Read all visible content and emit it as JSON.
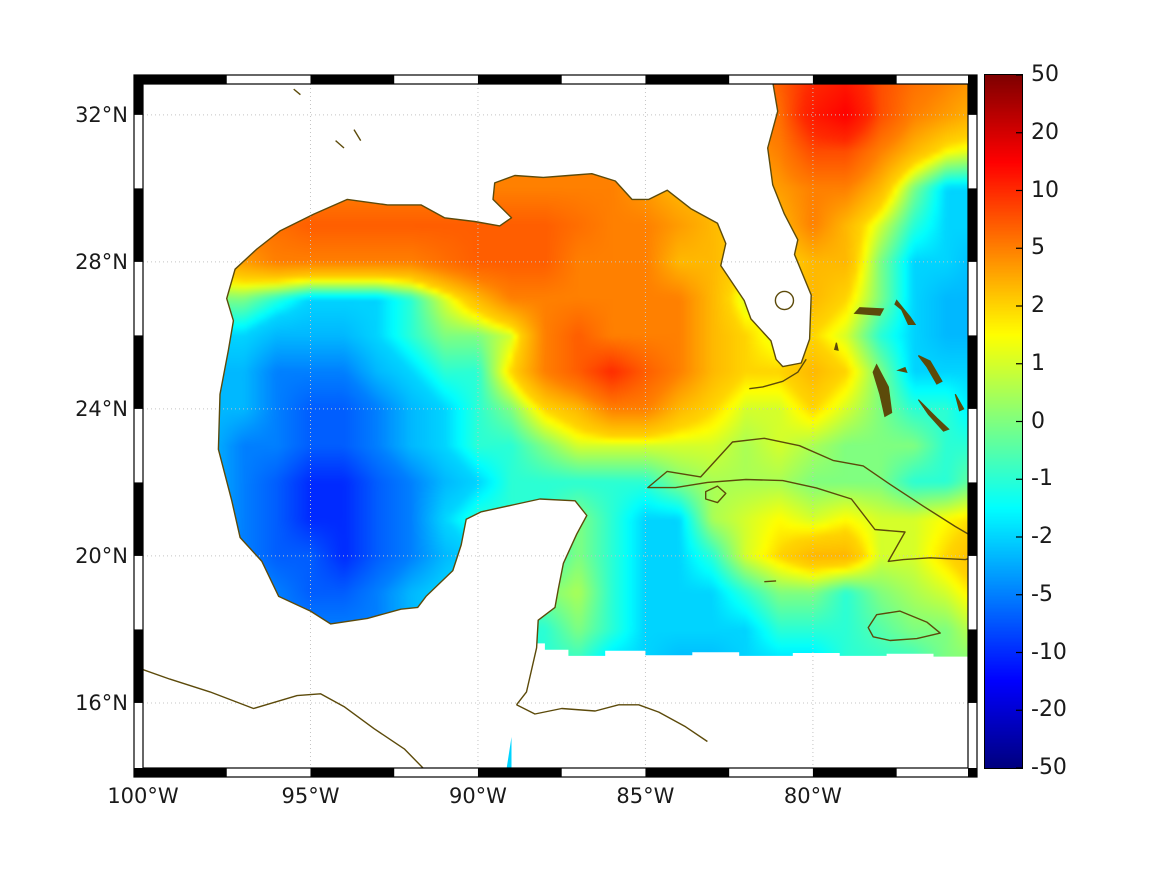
{
  "axes": {
    "x_tick_labels": [
      "100°W",
      "95°W",
      "90°W",
      "85°W",
      "80°W"
    ],
    "y_tick_labels": [
      "16°N",
      "20°N",
      "24°N",
      "28°N",
      "32°N"
    ]
  },
  "chart_data": {
    "type": "heatmap",
    "title": "",
    "xlabel": "",
    "ylabel": "",
    "lon_ticks": [
      -100,
      -95,
      -90,
      -85,
      -80
    ],
    "lat_ticks": [
      16,
      20,
      24,
      28,
      32
    ],
    "lon_range": [
      -100,
      -75.37
    ],
    "lat_range": [
      14.23,
      32.84
    ],
    "grid_on": true,
    "colorbar": {
      "orientation": "vertical",
      "colormap": "jet",
      "tick_labels": [
        "50",
        "20",
        "10",
        "5",
        "2",
        "1",
        "0",
        "-1",
        "-2",
        "-5",
        "-10",
        "-20",
        "-50"
      ],
      "scale_ticks": [
        -50,
        -20,
        -10,
        -5,
        -2,
        -1,
        0,
        1,
        2,
        5,
        10,
        20,
        50
      ]
    },
    "grid": {
      "lons": [
        -100,
        -99,
        -98,
        -97,
        -96,
        -95,
        -94,
        -93,
        -92,
        -91,
        -90,
        -89,
        -88,
        -87,
        -86,
        -85,
        -84,
        -83,
        -82,
        -81,
        -80,
        -79,
        -78,
        -77,
        -76,
        -75
      ],
      "lats": [
        33,
        32,
        31,
        30,
        29,
        28,
        27,
        26,
        25,
        24,
        23,
        22,
        21,
        20,
        19,
        18,
        17,
        16,
        15
      ],
      "values": [
        [
          5,
          5,
          5,
          5,
          5,
          5,
          5,
          5,
          5,
          5,
          5,
          5,
          5,
          5,
          5,
          5,
          5,
          5,
          5,
          7,
          10,
          12,
          8,
          6,
          5,
          4
        ],
        [
          5,
          5,
          5,
          5,
          5,
          5,
          5,
          5,
          5,
          5,
          5,
          5,
          5,
          5,
          5,
          5,
          5,
          5,
          4,
          6,
          12,
          15,
          8,
          5,
          4,
          3
        ],
        [
          4,
          4,
          4,
          4,
          5,
          5,
          5,
          5,
          5,
          5,
          5,
          5,
          5,
          5,
          5,
          5,
          4,
          4,
          4,
          5,
          8,
          8,
          5,
          3,
          1.5,
          1
        ],
        [
          3,
          3,
          3,
          4,
          5,
          5,
          5,
          5,
          5,
          5,
          5,
          5,
          5,
          5,
          5,
          4,
          3,
          3,
          3,
          4,
          5,
          5,
          3,
          0,
          -2,
          -2
        ],
        [
          3,
          3,
          4,
          5,
          6,
          7,
          7,
          7,
          7,
          7,
          7,
          7,
          7,
          6,
          5,
          5,
          4,
          3,
          2,
          3,
          5,
          3,
          1,
          -1,
          -2,
          -2
        ],
        [
          2,
          2,
          3,
          4,
          5,
          5,
          5,
          5,
          5,
          6,
          7,
          7,
          7,
          5,
          5,
          5,
          3,
          3,
          2,
          2,
          3,
          3,
          0,
          -2,
          -2,
          -3
        ],
        [
          1,
          1,
          0,
          0,
          -1,
          -2,
          -2,
          -2,
          -1,
          1,
          3,
          5,
          5,
          5,
          5,
          5,
          5,
          3,
          1,
          2,
          3,
          2,
          0,
          -2,
          -3,
          -3
        ],
        [
          0,
          -1,
          -2,
          -2,
          -3,
          -3,
          -3,
          -2,
          -1,
          0,
          0,
          1,
          5,
          7,
          5,
          5,
          5,
          3,
          2,
          1,
          2,
          1,
          -1,
          -2,
          -3,
          -3
        ],
        [
          -1,
          -2,
          -3,
          -3,
          -5,
          -5,
          -5,
          -3,
          -2,
          -1,
          -1,
          2,
          5,
          7,
          10,
          7,
          5,
          3,
          2,
          2,
          3,
          2,
          0,
          -2,
          -2,
          -2
        ],
        [
          -1,
          -2,
          -3,
          -3,
          -5,
          -7,
          -7,
          -5,
          -3,
          -2,
          -1,
          0,
          2,
          3,
          5,
          5,
          3,
          2,
          1,
          1,
          2,
          1,
          0,
          -1,
          -1,
          -2
        ],
        [
          -1,
          -2,
          -3,
          -5,
          -5,
          -7,
          -7,
          -5,
          -3,
          -2,
          -1,
          -1,
          0,
          1,
          1,
          1,
          1,
          1,
          0.5,
          1,
          0.5,
          0,
          0,
          0,
          -1,
          -1
        ],
        [
          -1,
          -2,
          -3,
          -5,
          -7,
          -10,
          -10,
          -7,
          -5,
          -3,
          -2,
          -1,
          -1,
          -1,
          -1,
          -1,
          0,
          0.5,
          0.5,
          0.5,
          0,
          0,
          0,
          -1,
          -1,
          0
        ],
        [
          -1,
          -2,
          -3,
          -5,
          -7,
          -10,
          -10,
          -7,
          -5,
          -2,
          -1,
          -1,
          -1,
          0,
          -1,
          -2,
          -2,
          0.5,
          1,
          1.5,
          1,
          1.5,
          1,
          1,
          1.5,
          2
        ],
        [
          -2,
          -3,
          -5,
          -5,
          -7,
          -7,
          -10,
          -7,
          -5,
          -3,
          -2,
          -1,
          -1,
          0,
          -1,
          -2,
          -2,
          -1,
          1,
          2,
          3,
          3,
          1,
          1,
          2,
          3
        ],
        [
          -2,
          -3,
          -3,
          -3,
          -5,
          -7,
          -7,
          -5,
          -3,
          -2,
          -1,
          -1,
          0,
          0.5,
          -1,
          -2,
          -2,
          -2,
          -1,
          0,
          0,
          -1,
          0,
          0.5,
          1,
          2
        ],
        [
          -3,
          -3,
          -3,
          -3,
          -5,
          -5,
          -5,
          -5,
          -3,
          -2,
          -1,
          -1,
          -1,
          0,
          -1,
          -2,
          -2,
          -2,
          -2,
          -1,
          -1,
          -1,
          -0.5,
          0,
          0,
          1
        ],
        [
          -3,
          -3,
          -3,
          -3,
          -3,
          -5,
          -5,
          -5,
          -3,
          -3,
          -2,
          -2,
          -1,
          -1,
          -2,
          -2,
          -3,
          -3,
          -2,
          -2,
          -2,
          -1,
          -1,
          -1,
          0,
          0
        ],
        [
          -3,
          -3,
          -3,
          -3,
          -3,
          -3,
          -3,
          -3,
          -3,
          -3,
          -2,
          -2,
          -2,
          -2,
          -2,
          -2,
          -2,
          -2,
          -2,
          -2,
          -2,
          -2,
          -1,
          -1,
          -1,
          -1
        ],
        [
          -3,
          -3,
          -3,
          -3,
          -3,
          -3,
          -3,
          -3,
          -3,
          -3,
          -2,
          -2,
          -2,
          -2,
          -2,
          -2,
          -2,
          -2,
          -2,
          -2,
          -2,
          -2,
          -1,
          -1,
          -1,
          -1
        ]
      ]
    }
  },
  "map": {
    "land_color": "#ffffff",
    "coast_color": "#5c4a0a",
    "island_color": "#5c4a0a",
    "gridline_color": "#c4c4c4",
    "coast_main": [
      [
        -81.2,
        32.9
      ],
      [
        -81.05,
        32.1
      ],
      [
        -81.35,
        31.1
      ],
      [
        -81.2,
        30.1
      ],
      [
        -80.85,
        29.3
      ],
      [
        -80.45,
        28.6
      ],
      [
        -80.55,
        28.2
      ],
      [
        -80.05,
        27.1
      ],
      [
        -80.1,
        25.9
      ],
      [
        -80.35,
        25.25
      ],
      [
        -80.9,
        25.15
      ],
      [
        -81.1,
        25.35
      ],
      [
        -81.25,
        25.85
      ],
      [
        -81.85,
        26.45
      ],
      [
        -82.05,
        26.95
      ],
      [
        -82.75,
        27.9
      ],
      [
        -82.6,
        28.5
      ],
      [
        -82.85,
        29.05
      ],
      [
        -83.65,
        29.45
      ],
      [
        -84.35,
        29.95
      ],
      [
        -84.9,
        29.7
      ],
      [
        -85.4,
        29.7
      ],
      [
        -85.9,
        30.2
      ],
      [
        -86.6,
        30.4
      ],
      [
        -87.3,
        30.35
      ],
      [
        -88.05,
        30.3
      ],
      [
        -88.9,
        30.35
      ],
      [
        -89.5,
        30.15
      ],
      [
        -89.55,
        29.7
      ],
      [
        -89.0,
        29.2
      ],
      [
        -89.35,
        28.98
      ],
      [
        -90.1,
        29.1
      ],
      [
        -91.0,
        29.2
      ],
      [
        -91.7,
        29.55
      ],
      [
        -92.7,
        29.55
      ],
      [
        -93.9,
        29.7
      ],
      [
        -94.9,
        29.3
      ],
      [
        -95.9,
        28.85
      ],
      [
        -96.6,
        28.35
      ],
      [
        -97.25,
        27.8
      ],
      [
        -97.5,
        27.0
      ],
      [
        -97.3,
        26.4
      ],
      [
        -97.45,
        25.6
      ],
      [
        -97.7,
        24.4
      ],
      [
        -97.75,
        22.9
      ],
      [
        -97.35,
        21.5
      ],
      [
        -97.1,
        20.5
      ],
      [
        -96.45,
        19.85
      ],
      [
        -95.95,
        18.9
      ],
      [
        -95.0,
        18.5
      ],
      [
        -94.4,
        18.15
      ],
      [
        -93.3,
        18.3
      ],
      [
        -92.3,
        18.55
      ],
      [
        -91.8,
        18.6
      ],
      [
        -91.55,
        18.9
      ],
      [
        -90.75,
        19.6
      ],
      [
        -90.5,
        20.3
      ],
      [
        -90.35,
        21.0
      ],
      [
        -89.9,
        21.2
      ],
      [
        -88.9,
        21.4
      ],
      [
        -88.15,
        21.55
      ],
      [
        -87.1,
        21.5
      ],
      [
        -86.75,
        21.1
      ],
      [
        -87.05,
        20.6
      ],
      [
        -87.45,
        19.8
      ],
      [
        -87.6,
        19.1
      ],
      [
        -87.7,
        18.6
      ],
      [
        -88.2,
        18.25
      ],
      [
        -88.25,
        17.5
      ],
      [
        -88.55,
        16.3
      ],
      [
        -88.85,
        15.95
      ]
    ],
    "land_close": [
      [
        -89.2,
        13.9
      ],
      [
        -101,
        13.9
      ],
      [
        -101,
        33.2
      ],
      [
        -81.2,
        33.2
      ]
    ],
    "no_data_mask": [
      [
        -88.6,
        17.62
      ],
      [
        -88.0,
        17.62
      ],
      [
        -88.0,
        17.45
      ],
      [
        -87.3,
        17.45
      ],
      [
        -87.3,
        17.28
      ],
      [
        -86.2,
        17.28
      ],
      [
        -86.2,
        17.42
      ],
      [
        -85.0,
        17.42
      ],
      [
        -85.0,
        17.3
      ],
      [
        -83.6,
        17.3
      ],
      [
        -83.6,
        17.38
      ],
      [
        -82.2,
        17.38
      ],
      [
        -82.2,
        17.28
      ],
      [
        -80.6,
        17.28
      ],
      [
        -80.6,
        17.36
      ],
      [
        -79.2,
        17.36
      ],
      [
        -79.2,
        17.28
      ],
      [
        -77.8,
        17.28
      ],
      [
        -77.8,
        17.34
      ],
      [
        -76.4,
        17.34
      ],
      [
        -76.4,
        17.26
      ],
      [
        -75.0,
        17.26
      ],
      [
        -75.0,
        13.9
      ],
      [
        -89.0,
        13.9
      ],
      [
        -89.0,
        17.62
      ]
    ],
    "pacific_coast": [
      [
        -100.6,
        17.1
      ],
      [
        -99.2,
        16.65
      ],
      [
        -98.0,
        16.3
      ],
      [
        -96.7,
        15.85
      ],
      [
        -95.4,
        16.2
      ],
      [
        -94.7,
        16.25
      ],
      [
        -94.0,
        15.9
      ],
      [
        -93.1,
        15.3
      ],
      [
        -92.2,
        14.75
      ],
      [
        -91.5,
        14.1
      ]
    ],
    "honduras_coast": [
      [
        -88.85,
        15.95
      ],
      [
        -88.3,
        15.7
      ],
      [
        -87.5,
        15.85
      ],
      [
        -86.5,
        15.78
      ],
      [
        -85.8,
        15.95
      ],
      [
        -85.2,
        15.95
      ],
      [
        -84.6,
        15.75
      ],
      [
        -83.8,
        15.35
      ],
      [
        -83.15,
        14.95
      ]
    ],
    "cuba": [
      [
        -84.93,
        21.86
      ],
      [
        -84.35,
        22.3
      ],
      [
        -83.35,
        22.15
      ],
      [
        -82.4,
        23.1
      ],
      [
        -81.45,
        23.2
      ],
      [
        -80.4,
        23.0
      ],
      [
        -79.4,
        22.6
      ],
      [
        -78.5,
        22.45
      ],
      [
        -77.7,
        21.95
      ],
      [
        -76.7,
        21.35
      ],
      [
        -75.75,
        20.8
      ],
      [
        -74.9,
        20.35
      ],
      [
        -74.75,
        20.1
      ],
      [
        -75.45,
        19.9
      ],
      [
        -76.5,
        19.95
      ],
      [
        -77.3,
        19.9
      ],
      [
        -77.75,
        19.85
      ],
      [
        -77.25,
        20.65
      ],
      [
        -78.15,
        20.72
      ],
      [
        -78.85,
        21.55
      ],
      [
        -79.9,
        21.85
      ],
      [
        -80.9,
        22.05
      ],
      [
        -82.0,
        22.08
      ],
      [
        -83.15,
        22.0
      ],
      [
        -84.1,
        21.86
      ]
    ],
    "isla_juventud": [
      [
        -83.2,
        21.75
      ],
      [
        -82.85,
        21.9
      ],
      [
        -82.6,
        21.7
      ],
      [
        -82.85,
        21.45
      ],
      [
        -83.2,
        21.55
      ]
    ],
    "jamaica": [
      [
        -78.35,
        18.05
      ],
      [
        -78.1,
        18.4
      ],
      [
        -77.4,
        18.5
      ],
      [
        -76.6,
        18.2
      ],
      [
        -76.2,
        17.9
      ],
      [
        -76.9,
        17.75
      ],
      [
        -77.7,
        17.7
      ],
      [
        -78.2,
        17.8
      ]
    ],
    "florida_keys": [
      [
        -80.2,
        25.35
      ],
      [
        -80.45,
        25.0
      ],
      [
        -80.9,
        24.75
      ],
      [
        -81.5,
        24.6
      ],
      [
        -81.9,
        24.55
      ]
    ],
    "cayman": [
      [
        -81.45,
        19.3
      ],
      [
        -81.1,
        19.32
      ]
    ],
    "lake_okeechobee": {
      "lon": -80.85,
      "lat": 26.95,
      "r": 0.27
    },
    "small_lakes": [
      [
        [
          -93.7,
          31.6
        ],
        [
          -93.5,
          31.3
        ]
      ],
      [
        [
          -94.25,
          31.3
        ],
        [
          -94.0,
          31.1
        ]
      ],
      [
        [
          -95.5,
          32.7
        ],
        [
          -95.3,
          32.55
        ]
      ]
    ],
    "islands": [
      [
        [
          -78.75,
          26.6
        ],
        [
          -78.0,
          26.55
        ],
        [
          -77.9,
          26.72
        ],
        [
          -78.6,
          26.75
        ]
      ],
      [
        [
          -77.5,
          26.95
        ],
        [
          -77.1,
          26.5
        ],
        [
          -76.95,
          26.3
        ],
        [
          -77.15,
          26.3
        ],
        [
          -77.35,
          26.7
        ],
        [
          -77.55,
          26.85
        ]
      ],
      [
        [
          -78.1,
          25.2
        ],
        [
          -77.75,
          24.6
        ],
        [
          -77.65,
          23.9
        ],
        [
          -77.85,
          23.8
        ],
        [
          -78.0,
          24.4
        ],
        [
          -78.2,
          25.0
        ]
      ],
      [
        [
          -77.45,
          25.05
        ],
        [
          -77.2,
          25.0
        ],
        [
          -77.25,
          25.12
        ]
      ],
      [
        [
          -76.85,
          25.45
        ],
        [
          -76.5,
          25.3
        ],
        [
          -76.15,
          24.75
        ],
        [
          -76.3,
          24.68
        ],
        [
          -76.6,
          25.15
        ]
      ],
      [
        [
          -75.75,
          24.4
        ],
        [
          -75.5,
          24.0
        ],
        [
          -75.62,
          23.95
        ]
      ],
      [
        [
          -76.85,
          24.25
        ],
        [
          -76.3,
          23.75
        ],
        [
          -75.95,
          23.45
        ],
        [
          -76.1,
          23.4
        ],
        [
          -76.55,
          23.85
        ]
      ],
      [
        [
          -75.35,
          23.4
        ],
        [
          -75.0,
          22.95
        ],
        [
          -75.15,
          22.85
        ]
      ],
      [
        [
          -79.3,
          25.8
        ],
        [
          -79.25,
          25.6
        ],
        [
          -79.35,
          25.62
        ]
      ]
    ]
  }
}
